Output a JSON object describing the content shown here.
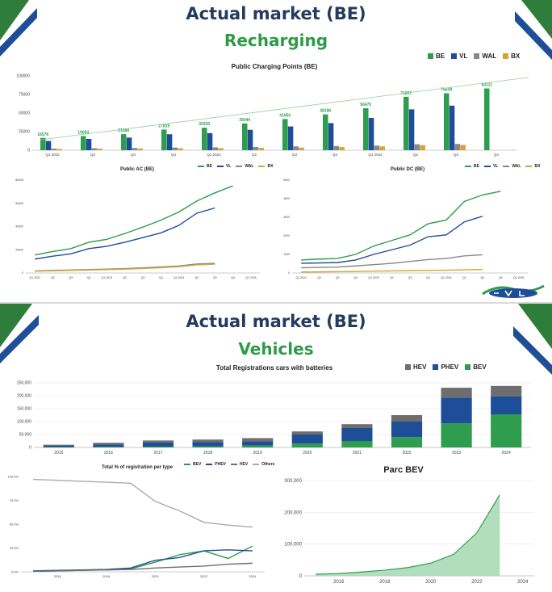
{
  "slide1": {
    "title": "Actual market (BE)",
    "subtitle": "Recharging"
  },
  "slide2": {
    "title": "Actual market (BE)",
    "subtitle": "Vehicles"
  },
  "colors": {
    "BE": "#2e9d4e",
    "VL": "#1f4e99",
    "WAL": "#888888",
    "BX": "#d4a437",
    "BEV": "#2e9d4e",
    "PHEV": "#1f4e99",
    "HEV": "#6e6e6e",
    "Others": "#aaaaaa",
    "title_dark": "#243a5e",
    "title_green": "#2d9a47"
  },
  "chart_data": [
    {
      "id": "public_charging_points",
      "type": "bar",
      "title": "Public Charging Points (BE)",
      "legend": [
        "BE",
        "VL",
        "WAL",
        "BX"
      ],
      "legend_position": "top-right",
      "categories": [
        "Q1 2022",
        "Q2",
        "Q3",
        "Q4",
        "Q1 2023",
        "Q2",
        "Q3",
        "Q4",
        "Q1 2024",
        "Q2",
        "Q3",
        "Q4"
      ],
      "ylim": [
        0,
        100000
      ],
      "yticks": [
        0,
        25000,
        50000,
        75000,
        100000
      ],
      "ytick_labels": [
        "0",
        "25000",
        "50000",
        "75000",
        "100000"
      ],
      "series": [
        {
          "name": "BE",
          "values": [
            16576,
            19054,
            21588,
            27819,
            30293,
            36044,
            41950,
            48186,
            56475,
            71897,
            76639,
            83111
          ]
        },
        {
          "name": "VL",
          "values": [
            12500,
            15200,
            17000,
            21500,
            23000,
            27500,
            32000,
            36500,
            43500,
            55000,
            60000,
            null
          ]
        },
        {
          "name": "WAL",
          "values": [
            2200,
            2800,
            3000,
            3600,
            3900,
            4300,
            5200,
            5700,
            6200,
            8000,
            8500,
            null
          ]
        },
        {
          "name": "BX",
          "values": [
            1800,
            2100,
            2300,
            2600,
            2700,
            3100,
            3500,
            4200,
            5100,
            6800,
            7100,
            null
          ]
        }
      ],
      "data_labels": [
        "16576",
        "19054",
        "21588",
        "27819",
        "30293",
        "36044",
        "41950",
        "48186",
        "56475",
        "71897",
        "76639",
        "83111"
      ],
      "trendline": true
    },
    {
      "id": "public_ac",
      "type": "line",
      "title": "Public AC (BE)",
      "legend": [
        "BE",
        "VL",
        "WAL",
        "BX"
      ],
      "categories": [
        "Q1 2022",
        "Q2",
        "Q3",
        "Q4",
        "Q1 2023",
        "Q2",
        "Q3",
        "Q4",
        "Q1 2024",
        "Q2",
        "Q3",
        "Q4",
        "Q1 2025"
      ],
      "ylim": [
        0,
        80000
      ],
      "yticks": [
        0,
        20000,
        40000,
        60000,
        80000
      ],
      "ytick_labels": [
        "0",
        "20000",
        "40000",
        "60000",
        "80000"
      ],
      "series": [
        {
          "name": "BE",
          "values": [
            15500,
            18500,
            21000,
            26500,
            29000,
            34000,
            39500,
            45500,
            52500,
            62000,
            69000,
            75000,
            null
          ]
        },
        {
          "name": "VL",
          "values": [
            12000,
            14500,
            16500,
            21000,
            23000,
            26500,
            30500,
            34500,
            41000,
            51500,
            56000,
            null,
            null
          ]
        },
        {
          "name": "WAL",
          "values": [
            1800,
            2200,
            2600,
            3000,
            3300,
            3800,
            4500,
            5200,
            6000,
            7800,
            8300,
            null,
            null
          ]
        },
        {
          "name": "BX",
          "values": [
            1500,
            1900,
            2200,
            2600,
            2900,
            3300,
            3900,
            4600,
            5400,
            7000,
            7600,
            null,
            null
          ]
        }
      ]
    },
    {
      "id": "public_dc",
      "type": "line",
      "title": "Public DC (BE)",
      "legend": [
        "BE",
        "VL",
        "WAL",
        "BX"
      ],
      "categories": [
        "Q1 2022",
        "Q2",
        "Q3",
        "Q4",
        "Q1 2023",
        "Q2",
        "Q3",
        "Q4",
        "Q1 2024",
        "Q2",
        "Q3",
        "Q4",
        "Q1 2025"
      ],
      "ylim": [
        0,
        5000
      ],
      "yticks": [
        0,
        1000,
        2000,
        3000,
        4000,
        5000
      ],
      "ytick_labels": [
        "0",
        "1000",
        "2000",
        "3000",
        "4000",
        "5000"
      ],
      "series": [
        {
          "name": "BE",
          "values": [
            700,
            750,
            780,
            1000,
            1450,
            1750,
            2050,
            2650,
            2850,
            3850,
            4200,
            4400,
            null
          ]
        },
        {
          "name": "VL",
          "values": [
            520,
            540,
            560,
            700,
            1000,
            1250,
            1500,
            1950,
            2050,
            2750,
            3050,
            null,
            null
          ]
        },
        {
          "name": "WAL",
          "values": [
            280,
            300,
            320,
            380,
            450,
            520,
            620,
            720,
            780,
            920,
            980,
            null,
            null
          ]
        },
        {
          "name": "BX",
          "values": [
            50,
            60,
            70,
            80,
            100,
            110,
            130,
            140,
            150,
            170,
            190,
            null,
            null
          ]
        }
      ]
    },
    {
      "id": "total_registrations",
      "type": "bar",
      "stacked": true,
      "title": "Total Registrations cars with batteries",
      "legend": [
        "HEV",
        "PHEV",
        "BEV"
      ],
      "legend_position": "top-right",
      "categories": [
        "2015",
        "2016",
        "2017",
        "2018",
        "2019",
        "2020",
        "2021",
        "2022",
        "2023",
        "2024"
      ],
      "ylim": [
        0,
        250000
      ],
      "yticks": [
        0,
        50000,
        100000,
        150000,
        200000,
        250000
      ],
      "ytick_labels": [
        "0",
        "50,000",
        "100,000",
        "150,000",
        "200,000",
        "250,000"
      ],
      "series": [
        {
          "name": "BEV",
          "values": [
            1500,
            2000,
            3000,
            4500,
            8000,
            15000,
            25000,
            40000,
            93000,
            128000
          ]
        },
        {
          "name": "PHEV",
          "values": [
            6000,
            10000,
            16000,
            16000,
            16000,
            35000,
            50000,
            60000,
            100000,
            70000
          ]
        },
        {
          "name": "HEV",
          "values": [
            3000,
            6000,
            8000,
            10000,
            12000,
            12000,
            15000,
            25000,
            38000,
            40000
          ]
        }
      ]
    },
    {
      "id": "pct_registration_per_type",
      "type": "line",
      "title": "Total % of registration per type",
      "legend": [
        "BEV",
        "PHEV",
        "HEV",
        "Others"
      ],
      "categories": [
        "2015",
        "2016",
        "2017",
        "2018",
        "2019",
        "2020",
        "2021",
        "2022",
        "2023",
        "2024"
      ],
      "xtick_labels": [
        "2016",
        "2018",
        "2020",
        "2022",
        "2024"
      ],
      "ylim": [
        0,
        100
      ],
      "yticks": [
        0,
        25,
        50,
        75,
        100
      ],
      "ytick_labels": [
        "0.0%",
        "25.0%",
        "50.0%",
        "75.0%",
        "100.0%"
      ],
      "series": [
        {
          "name": "BEV",
          "values": [
            0.5,
            1,
            1.5,
            2,
            3,
            10,
            18,
            22,
            14,
            27
          ]
        },
        {
          "name": "PHEV",
          "values": [
            1,
            1.5,
            2,
            2.5,
            4,
            12,
            15,
            22,
            23,
            22
          ]
        },
        {
          "name": "HEV",
          "values": [
            0.5,
            1,
            1.5,
            2,
            2.5,
            4,
            5,
            6,
            8,
            9
          ]
        },
        {
          "name": "Others",
          "values": [
            97,
            96,
            95,
            94,
            93,
            74,
            64,
            52,
            49,
            47
          ]
        }
      ]
    },
    {
      "id": "parc_bev",
      "type": "area",
      "title": "Parc BEV",
      "categories": [
        "2015",
        "2016",
        "2017",
        "2018",
        "2019",
        "2020",
        "2021",
        "2022",
        "2023",
        "2024"
      ],
      "xtick_labels": [
        "2016",
        "2018",
        "2020",
        "2022",
        "2024"
      ],
      "ylim": [
        0,
        300000
      ],
      "yticks": [
        0,
        100000,
        200000,
        300000
      ],
      "ytick_labels": [
        "0",
        "100,000",
        "200,000",
        "300,000"
      ],
      "series": [
        {
          "name": "BEV",
          "values": [
            5000,
            7500,
            12000,
            18000,
            26000,
            40000,
            68000,
            135000,
            255000,
            null
          ]
        }
      ]
    }
  ]
}
